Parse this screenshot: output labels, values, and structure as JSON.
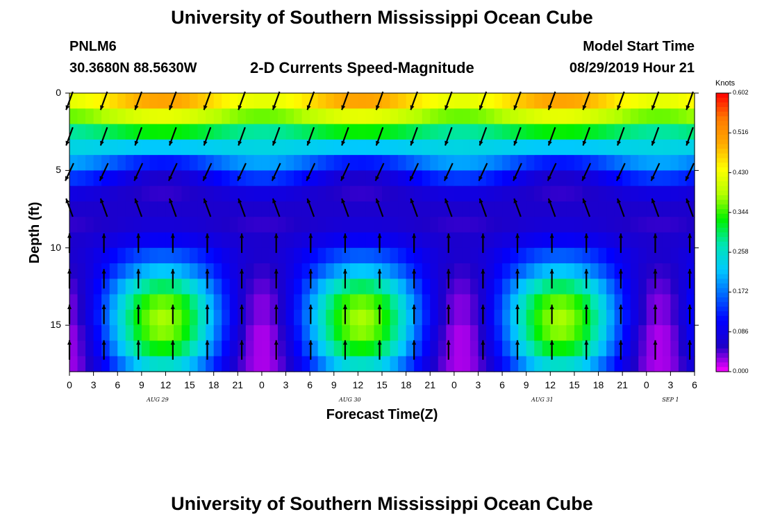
{
  "header": {
    "title": "University of Southern Mississippi Ocean Cube",
    "station": "PNLM6",
    "coords": "30.3680N 88.5630W",
    "chart_title": "2-D Currents Speed-Magnitude",
    "model_label": "Model Start Time",
    "model_time": "08/29/2019 Hour 21"
  },
  "footer": {
    "title": "University of Southern Mississippi Ocean Cube"
  },
  "colors": {
    "scale": [
      "#ff00ff",
      "#1e00c8",
      "#0000ff",
      "#0064ff",
      "#00c8ff",
      "#00e6b4",
      "#00f000",
      "#b4ff00",
      "#ffff00",
      "#ffaa00",
      "#ff7800",
      "#ff0000"
    ],
    "arrow": "#000000"
  },
  "chart_data": {
    "type": "heatmap",
    "title": "2-D Currents Speed-Magnitude",
    "xlabel": "Forecast Time(Z)",
    "ylabel": "Depth (ft)",
    "colorbar_label": "Knots",
    "colorbar_ticks": [
      "0.602",
      "0.516",
      "0.430",
      "0.344",
      "0.258",
      "0.172",
      "0.086",
      "0.000"
    ],
    "value_range": [
      0,
      0.602
    ],
    "x_range_hours": [
      0,
      78
    ],
    "y_range": [
      0,
      18
    ],
    "y_inverted": true,
    "x_tick_labels": [
      "0",
      "3",
      "6",
      "9",
      "12",
      "15",
      "18",
      "21",
      "0",
      "3",
      "6",
      "9",
      "12",
      "15",
      "18",
      "21",
      "0",
      "3",
      "6",
      "9",
      "12",
      "15",
      "18",
      "21",
      "0",
      "3",
      "6"
    ],
    "y_tick_labels": [
      "0",
      "5",
      "10",
      "15"
    ],
    "y_tick_values": [
      0,
      5,
      10,
      15
    ],
    "date_labels": [
      {
        "hour": 11,
        "text": "AUG 29"
      },
      {
        "hour": 35,
        "text": "AUG 30"
      },
      {
        "hour": 59,
        "text": "AUG 31"
      },
      {
        "hour": 75,
        "text": "SEP 1"
      }
    ],
    "speed_profile_by_depth_band": {
      "depth_band_top_ft": [
        0,
        1,
        2,
        3,
        4,
        5,
        6,
        7,
        8,
        9,
        10,
        11,
        12,
        13,
        14,
        15,
        16,
        17
      ],
      "flood_phase": [
        0.5,
        0.42,
        0.33,
        0.22,
        0.12,
        0.06,
        0.05,
        0.06,
        0.07,
        0.1,
        0.16,
        0.22,
        0.3,
        0.36,
        0.38,
        0.37,
        0.33,
        0.26
      ],
      "ebb_phase": [
        0.42,
        0.36,
        0.28,
        0.24,
        0.2,
        0.14,
        0.08,
        0.06,
        0.05,
        0.06,
        0.06,
        0.05,
        0.04,
        0.03,
        0.03,
        0.02,
        0.02,
        0.02
      ]
    },
    "arrow_directions_deg_by_layer": {
      "surface": 200,
      "upper": 205,
      "mid": 340,
      "lower": 0
    }
  }
}
